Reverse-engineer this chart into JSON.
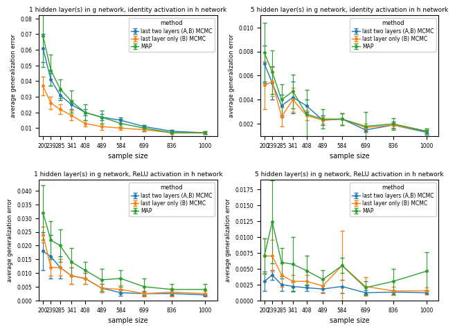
{
  "x_labels": [
    200,
    239,
    285,
    341,
    408,
    489,
    584,
    699,
    836,
    1000
  ],
  "colors": {
    "AB": "#1f77b4",
    "B": "#ff7f0e",
    "MAP": "#2ca02c"
  },
  "legend_labels": [
    "last two layers (A,B) MCMC",
    "last layer only (B) MCMC",
    "MAP"
  ],
  "subplots": [
    {
      "title": "1 hidden layer(s) in g network, identity activation in h network",
      "ylabel": "average generalization error",
      "xlabel": "sample size",
      "AB_mean": [
        0.061,
        0.041,
        0.031,
        0.025,
        0.02,
        0.017,
        0.015,
        0.011,
        0.008,
        0.007
      ],
      "AB_err": [
        0.009,
        0.004,
        0.003,
        0.003,
        0.002,
        0.002,
        0.002,
        0.001,
        0.001,
        0.001
      ],
      "B_mean": [
        0.037,
        0.026,
        0.022,
        0.018,
        0.013,
        0.011,
        0.01,
        0.009,
        0.007,
        0.007
      ],
      "B_err": [
        0.006,
        0.004,
        0.003,
        0.003,
        0.002,
        0.002,
        0.001,
        0.001,
        0.001,
        0.001
      ],
      "MAP_mean": [
        0.069,
        0.047,
        0.035,
        0.027,
        0.02,
        0.017,
        0.013,
        0.01,
        0.007,
        0.007
      ],
      "MAP_err": [
        0.02,
        0.01,
        0.006,
        0.007,
        0.005,
        0.004,
        0.003,
        0.002,
        0.002,
        0.001
      ],
      "ylim": [
        0.005,
        0.082
      ]
    },
    {
      "title": "5 hidden layer(s) in g network, identity activation in h network",
      "ylabel": "average generalization error",
      "xlabel": "sample size",
      "AB_mean": [
        0.007,
        0.0054,
        0.0035,
        0.0042,
        0.0035,
        0.0023,
        0.0024,
        0.0015,
        0.0019,
        0.0013
      ],
      "AB_err": [
        0.0015,
        0.0014,
        0.0009,
        0.0013,
        0.0005,
        0.0004,
        0.0005,
        0.0002,
        0.0003,
        0.0002
      ],
      "B_mean": [
        0.0052,
        0.0055,
        0.0026,
        0.004,
        0.0027,
        0.0023,
        0.0024,
        0.0017,
        0.0019,
        0.0014
      ],
      "B_err": [
        0.002,
        0.0012,
        0.0008,
        0.001,
        0.0004,
        0.0003,
        0.0005,
        0.0003,
        0.0002,
        0.0002
      ],
      "MAP_mean": [
        0.0079,
        0.0063,
        0.004,
        0.0047,
        0.0028,
        0.0024,
        0.0024,
        0.0018,
        0.002,
        0.0014
      ],
      "MAP_err": [
        0.0025,
        0.0018,
        0.0013,
        0.0014,
        0.002,
        0.0008,
        0.0005,
        0.0012,
        0.0005,
        0.0002
      ],
      "ylim": [
        0.001,
        0.011
      ]
    },
    {
      "title": "1 hidden layer(s) in g network, ReLU activation in h network",
      "ylabel": "average generalization error",
      "xlabel": "sample size",
      "AB_mean": [
        0.018,
        0.016,
        0.012,
        0.009,
        0.008,
        0.0045,
        0.0028,
        0.0025,
        0.0025,
        0.002
      ],
      "AB_err": [
        0.007,
        0.008,
        0.004,
        0.003,
        0.002,
        0.0015,
        0.001,
        0.0008,
        0.0008,
        0.0004
      ],
      "B_mean": [
        0.024,
        0.012,
        0.012,
        0.009,
        0.008,
        0.0045,
        0.004,
        0.0025,
        0.003,
        0.0025
      ],
      "B_err": [
        0.003,
        0.003,
        0.003,
        0.003,
        0.002,
        0.0015,
        0.0015,
        0.001,
        0.0015,
        0.001
      ],
      "MAP_mean": [
        0.032,
        0.022,
        0.02,
        0.014,
        0.011,
        0.0075,
        0.008,
        0.005,
        0.004,
        0.004
      ],
      "MAP_err": [
        0.01,
        0.007,
        0.006,
        0.005,
        0.003,
        0.004,
        0.003,
        0.003,
        0.002,
        0.002
      ],
      "ylim": [
        0.0,
        0.044
      ]
    },
    {
      "title": "5 hidden layer(s) in g network, ReLU activation in h network",
      "ylabel": "average generalization error",
      "xlabel": "sample size",
      "AB_mean": [
        0.003,
        0.004,
        0.0025,
        0.0022,
        0.002,
        0.0018,
        0.0022,
        0.0012,
        0.0013,
        0.0012
      ],
      "AB_err": [
        0.0015,
        0.0008,
        0.001,
        0.0007,
        0.0005,
        0.0006,
        0.001,
        0.0004,
        0.0003,
        0.0003
      ],
      "B_mean": [
        0.007,
        0.007,
        0.004,
        0.003,
        0.003,
        0.0023,
        0.0055,
        0.0022,
        0.0015,
        0.0015
      ],
      "B_err": [
        0.0028,
        0.0025,
        0.0018,
        0.001,
        0.001,
        0.001,
        0.0055,
        0.0015,
        0.0007,
        0.0005
      ],
      "MAP_mean": [
        0.007,
        0.0124,
        0.006,
        0.0057,
        0.0047,
        0.0033,
        0.0055,
        0.002,
        0.003,
        0.0046
      ],
      "MAP_err": [
        0.0028,
        0.0065,
        0.0022,
        0.0043,
        0.0023,
        0.0015,
        0.0012,
        0.001,
        0.002,
        0.003
      ],
      "ylim": [
        0.0,
        0.019
      ]
    }
  ]
}
